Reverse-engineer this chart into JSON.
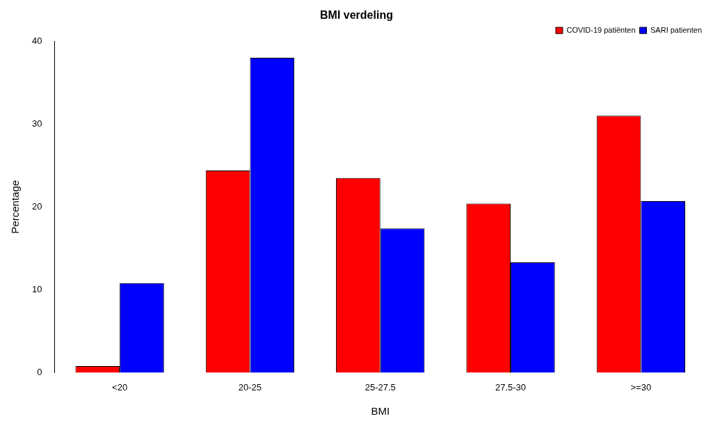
{
  "chart_data": {
    "type": "bar",
    "title": "BMI verdeling",
    "xlabel": "BMI",
    "ylabel": "Percentage",
    "categories": [
      "<20",
      "20-25",
      "25-27.5",
      "27.5-30",
      ">=30"
    ],
    "series": [
      {
        "name": "COVID-19 patiënten",
        "color": "#ff0000",
        "values": [
          0.8,
          24.4,
          23.5,
          20.4,
          31.0
        ]
      },
      {
        "name": "SARI patienten",
        "color": "#0000ff",
        "values": [
          10.8,
          38.0,
          17.4,
          13.3,
          20.7
        ]
      }
    ],
    "ylim": [
      0,
      40
    ],
    "yticks": [
      0,
      10,
      20,
      30,
      40
    ],
    "grid": false,
    "legend": "top right"
  }
}
